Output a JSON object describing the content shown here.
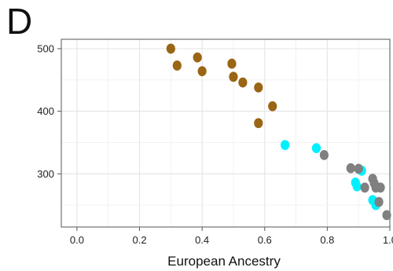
{
  "panel_label": "D",
  "chart_data": {
    "type": "scatter",
    "title": "",
    "xlabel": "European Ancestry",
    "ylabel": "",
    "xlim": [
      -0.05,
      1.0
    ],
    "ylim": [
      215,
      515
    ],
    "x_ticks": [
      0.0,
      0.2,
      0.4,
      0.6,
      0.8,
      1.0
    ],
    "x_tick_labels": [
      "0.0",
      "0.2",
      "0.4",
      "0.6",
      "0.8",
      "1.0"
    ],
    "y_ticks": [
      300,
      400,
      500
    ],
    "y_tick_labels": [
      "300",
      "400",
      "500"
    ],
    "grid": true,
    "legend": "none",
    "colors": {
      "brown": "#9a6514",
      "cyan": "#00f0ff",
      "gray": "#808080",
      "grid": "#e6e6e6",
      "axis": "#555555"
    },
    "series": [
      {
        "color_key": "brown",
        "points": [
          [
            0.3,
            500
          ],
          [
            0.32,
            473
          ],
          [
            0.385,
            486
          ],
          [
            0.4,
            464
          ],
          [
            0.495,
            476
          ],
          [
            0.5,
            455
          ],
          [
            0.53,
            446
          ],
          [
            0.58,
            438
          ],
          [
            0.625,
            408
          ],
          [
            0.58,
            381
          ]
        ]
      },
      {
        "color_key": "cyan",
        "points": [
          [
            0.665,
            346
          ],
          [
            0.765,
            341
          ],
          [
            0.89,
            286
          ],
          [
            0.895,
            280
          ],
          [
            0.91,
            305
          ],
          [
            0.945,
            258
          ],
          [
            0.955,
            250
          ]
        ]
      },
      {
        "color_key": "gray",
        "points": [
          [
            0.79,
            330
          ],
          [
            0.875,
            309
          ],
          [
            0.9,
            308
          ],
          [
            0.92,
            278
          ],
          [
            0.945,
            292
          ],
          [
            0.95,
            285
          ],
          [
            0.955,
            278
          ],
          [
            0.97,
            278
          ],
          [
            0.965,
            255
          ],
          [
            0.99,
            234
          ]
        ]
      }
    ]
  }
}
